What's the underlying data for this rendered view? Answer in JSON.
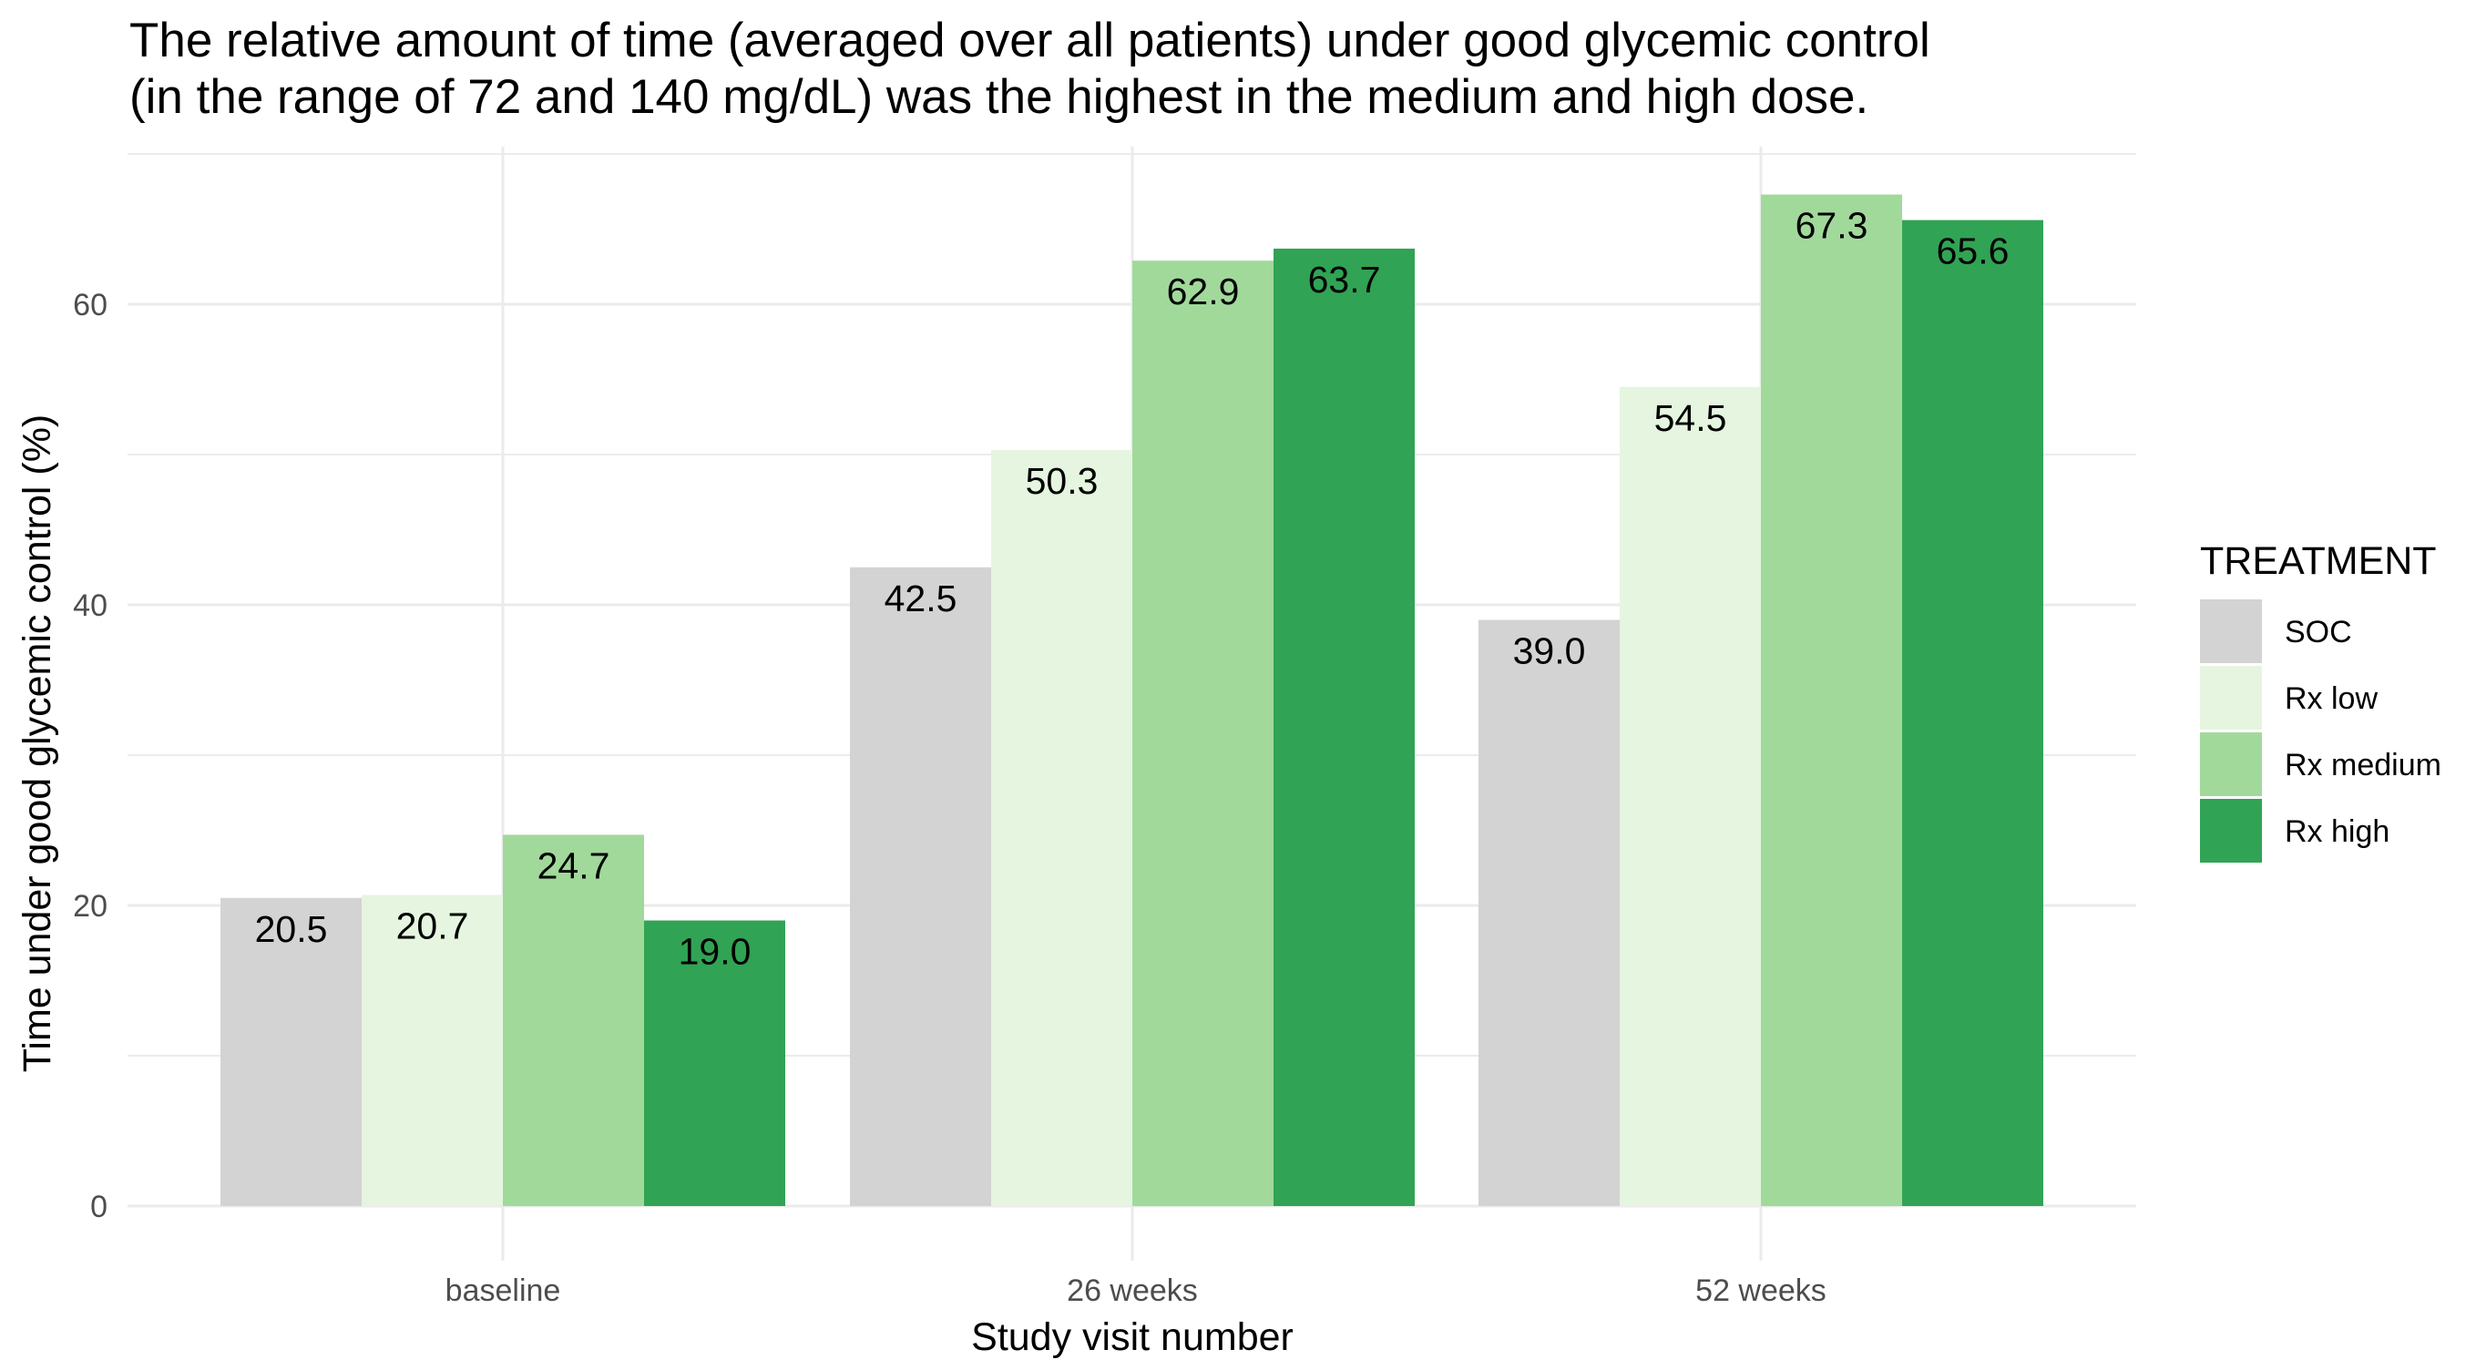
{
  "chart_data": {
    "type": "bar",
    "title_lines": [
      "The relative amount of time (averaged over all patients) under good glycemic control",
      "(in the range of 72 and 140 mg/dL) was the highest in the medium and high dose."
    ],
    "xlabel": "Study visit number",
    "ylabel": "Time under good glycemic control (%)",
    "categories": [
      "baseline",
      "26 weeks",
      "52 weeks"
    ],
    "y_ticks": [
      0,
      20,
      40,
      60
    ],
    "ylim": [
      0,
      70.5
    ],
    "grid": true,
    "legend": {
      "title": "TREATMENT",
      "placement": "right"
    },
    "series": [
      {
        "name": "SOC",
        "color": "#d3d3d3",
        "values": [
          20.5,
          42.5,
          39.0
        ],
        "labels": [
          "20.5",
          "42.5",
          "39.0"
        ]
      },
      {
        "name": "Rx low",
        "color": "#e5f5e0",
        "values": [
          20.7,
          50.3,
          54.5
        ],
        "labels": [
          "20.7",
          "50.3",
          "54.5"
        ]
      },
      {
        "name": "Rx medium",
        "color": "#a1d99b",
        "values": [
          24.7,
          62.9,
          67.3
        ],
        "labels": [
          "24.7",
          "62.9",
          "67.3"
        ]
      },
      {
        "name": "Rx high",
        "color": "#31a354",
        "values": [
          19.0,
          63.7,
          65.6
        ],
        "labels": [
          "19.0",
          "63.7",
          "65.6"
        ]
      }
    ]
  }
}
